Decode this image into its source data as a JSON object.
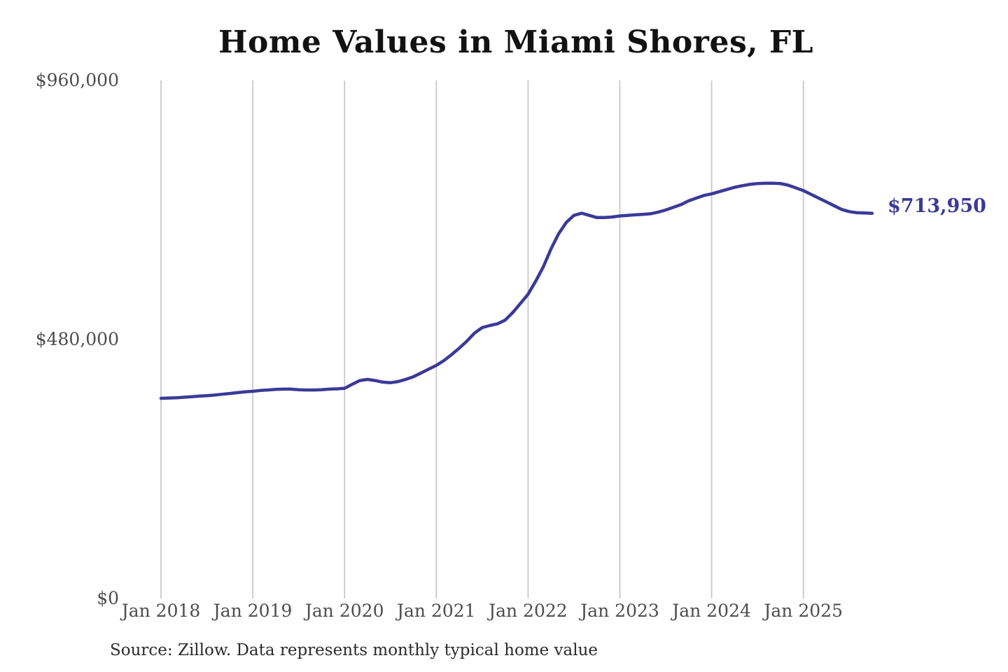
{
  "chart": {
    "title": "Home Values in Miami Shores, FL",
    "source": "Source: Zillow. Data represents monthly typical home value",
    "end_label": "$713,950"
  },
  "colors": {
    "line": "#3b3a98",
    "grid": "#c9c9c9",
    "axis_text": "#4d4d4d",
    "title_text": "#121212",
    "source_text": "#2b2b2b"
  },
  "chart_data": {
    "type": "line",
    "title": "Home Values in Miami Shores, FL",
    "x_frequency": "monthly",
    "x_start": "Jan 2018",
    "x_end": "Oct 2025",
    "xticks": [
      "Jan 2018",
      "Jan 2019",
      "Jan 2020",
      "Jan 2021",
      "Jan 2022",
      "Jan 2023",
      "Jan 2024",
      "Jan 2025"
    ],
    "yticks": [
      {
        "value": 0,
        "label": "$0"
      },
      {
        "value": 480000,
        "label": "$480,000"
      },
      {
        "value": 960000,
        "label": "$960,000"
      }
    ],
    "ylim": [
      0,
      960000
    ],
    "grid": "vertical-only",
    "legend": "none",
    "end_value_label": "$713,950",
    "last_value": 713950,
    "series": [
      {
        "name": "Monthly typical home value",
        "values": [
          371000,
          371500,
          372000,
          373000,
          374000,
          375000,
          376000,
          377000,
          378500,
          380000,
          381500,
          383000,
          384000,
          385500,
          386500,
          387500,
          388000,
          388000,
          387000,
          386500,
          386500,
          387000,
          388000,
          388500,
          389500,
          397000,
          404000,
          406000,
          404000,
          401000,
          400000,
          402000,
          406000,
          411000,
          418000,
          425000,
          432000,
          441000,
          452000,
          464000,
          477000,
          492000,
          502000,
          506000,
          509000,
          516000,
          530000,
          547000,
          564000,
          588000,
          615000,
          648000,
          676000,
          697000,
          710000,
          714000,
          710000,
          706000,
          706000,
          707000,
          709000,
          710000,
          711000,
          712000,
          713000,
          716000,
          720000,
          725000,
          730000,
          737000,
          742000,
          747000,
          750000,
          754000,
          758000,
          762000,
          765000,
          767500,
          769000,
          769500,
          769500,
          769000,
          766000,
          761000,
          756000,
          749000,
          742000,
          735000,
          728000,
          721000,
          717000,
          715000,
          714500,
          713950
        ]
      }
    ]
  }
}
